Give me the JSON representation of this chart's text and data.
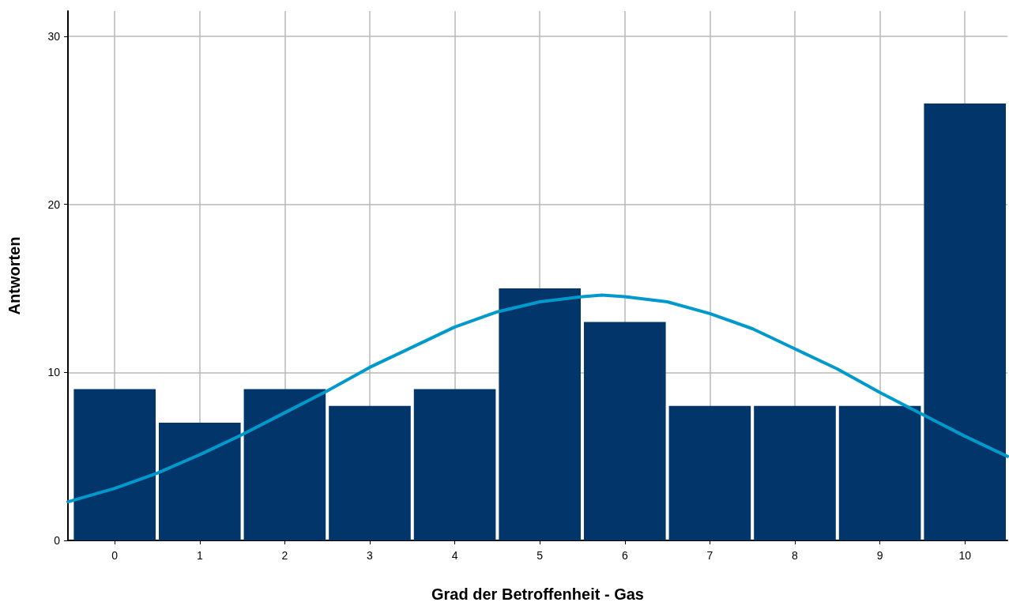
{
  "chart_data": {
    "type": "histogram",
    "xlabel": "Grad der Betroffenheit - Gas",
    "ylabel": "Antworten",
    "bins": [
      -0.5,
      0.5,
      1.5,
      2.5,
      3.5,
      4.5,
      5.5,
      6.5,
      7.5,
      8.5,
      9.5,
      10.5
    ],
    "xlim": [
      -0.55,
      10.5
    ],
    "xticks": [
      0,
      1,
      2,
      3,
      4,
      5,
      6,
      7,
      8,
      9,
      10
    ],
    "ylim": [
      0,
      31.5
    ],
    "yticks": [
      0,
      10,
      20,
      30
    ],
    "grid": true,
    "series": [
      {
        "color": "#02356a",
        "values": [
          9,
          7,
          9,
          8,
          9,
          15,
          13,
          8,
          8,
          8,
          26
        ]
      },
      {
        "type": "line",
        "color": "#0099cc",
        "x": [
          -0.55,
          0,
          0.5,
          1,
          1.5,
          2,
          2.5,
          3,
          3.5,
          4,
          4.5,
          5,
          5.5,
          5.73,
          6,
          6.5,
          7,
          7.5,
          8,
          8.5,
          9,
          9.5,
          10,
          10.5
        ],
        "values": [
          2.3,
          3.1,
          4.0,
          5.1,
          6.3,
          7.6,
          8.9,
          10.3,
          11.5,
          12.7,
          13.6,
          14.2,
          14.5,
          14.6,
          14.5,
          14.2,
          13.5,
          12.6,
          11.4,
          10.2,
          8.8,
          7.5,
          6.2,
          5.0
        ]
      }
    ]
  }
}
